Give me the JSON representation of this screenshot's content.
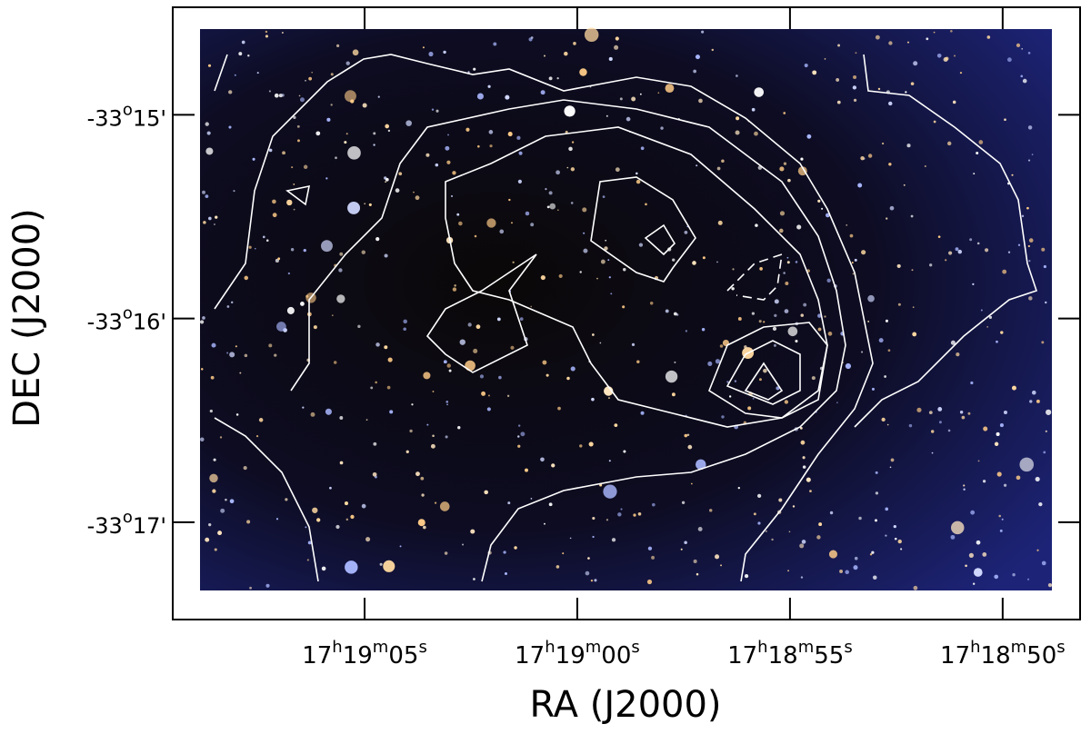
{
  "chart_data": {
    "type": "image",
    "xlabel": "RA (J2000)",
    "ylabel": "DEC (J2000)",
    "xlim": [
      62349.51,
      62328.18
    ],
    "xticks": [
      {
        "value": 62345,
        "label": "17h19m05s"
      },
      {
        "value": 62340,
        "label": "17h19m00s"
      },
      {
        "value": 62335,
        "label": "17h18m55s"
      },
      {
        "value": 62330,
        "label": "17h18m50s"
      }
    ],
    "ylim": [
      -33.2913,
      -33.2412
    ],
    "yticks": [
      {
        "value": -33.25,
        "label": "-33o15'"
      },
      {
        "value": -33.266667,
        "label": "-33o16'"
      },
      {
        "value": -33.283333,
        "label": "-33o17'"
      }
    ]
  }
}
